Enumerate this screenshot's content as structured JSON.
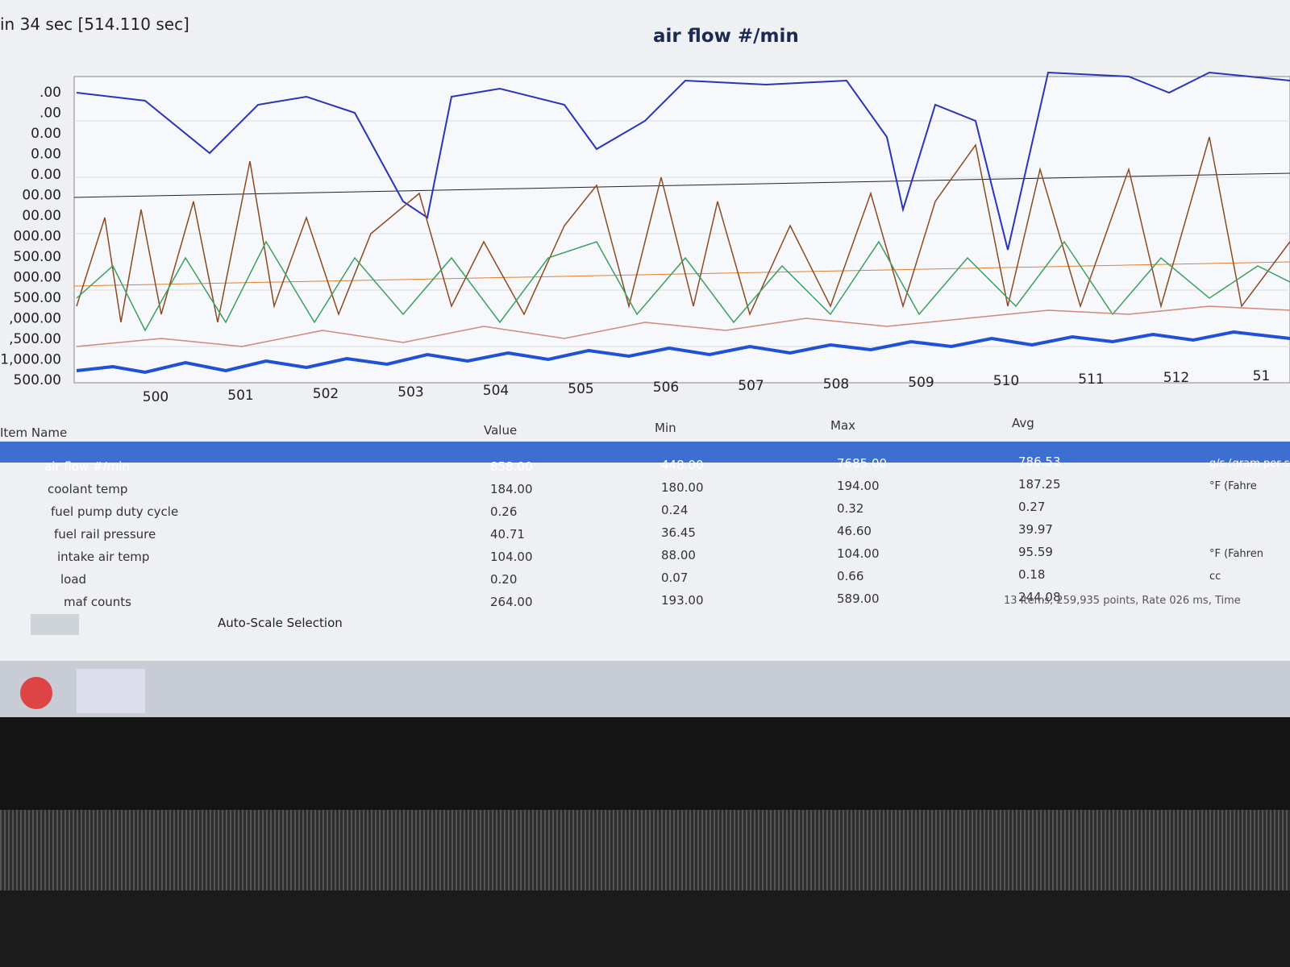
{
  "header": {
    "status": "in 34 sec [514.110 sec]"
  },
  "chart": {
    "title": "air flow #/min",
    "y_labels": [
      ".00",
      ".00",
      "0.00",
      "0.00",
      "0.00",
      "00.00",
      "00.00",
      "000.00",
      "500.00",
      "000.00",
      "500.00",
      ",000.00",
      ",500.00",
      "1,000.00",
      "500.00"
    ],
    "x_labels": [
      "500",
      "501",
      "502",
      "503",
      "504",
      "505",
      "506",
      "507",
      "508",
      "509",
      "510",
      "511",
      "512",
      "51"
    ]
  },
  "table": {
    "columns": [
      "Item Name",
      "Value",
      "Min",
      "Max",
      "Avg"
    ],
    "rows": [
      [
        "air flow #/min",
        "858.00",
        "448.00",
        "7685.00",
        "786.53",
        "g/s (gram per s"
      ],
      [
        "coolant temp",
        "184.00",
        "180.00",
        "194.00",
        "187.25",
        "°F (Fahre"
      ],
      [
        "fuel pump duty cycle",
        "0.26",
        "0.24",
        "0.32",
        "0.27",
        null
      ],
      [
        "fuel rail pressure",
        "40.71",
        "36.45",
        "46.60",
        "39.97",
        null
      ],
      [
        "intake air temp",
        "104.00",
        "88.00",
        "104.00",
        "95.59",
        "°F (Fahren"
      ],
      [
        "load",
        "0.20",
        "0.07",
        "0.66",
        "0.18",
        "cc"
      ],
      [
        "maf counts",
        "264.00",
        "193.00",
        "589.00",
        "244.08",
        null
      ]
    ]
  },
  "toolbar": {
    "auto_scale": "Auto-Scale Selection"
  },
  "footer": {
    "status": "13 Items, 259,935 points, Rate 026 ms, Time"
  }
}
